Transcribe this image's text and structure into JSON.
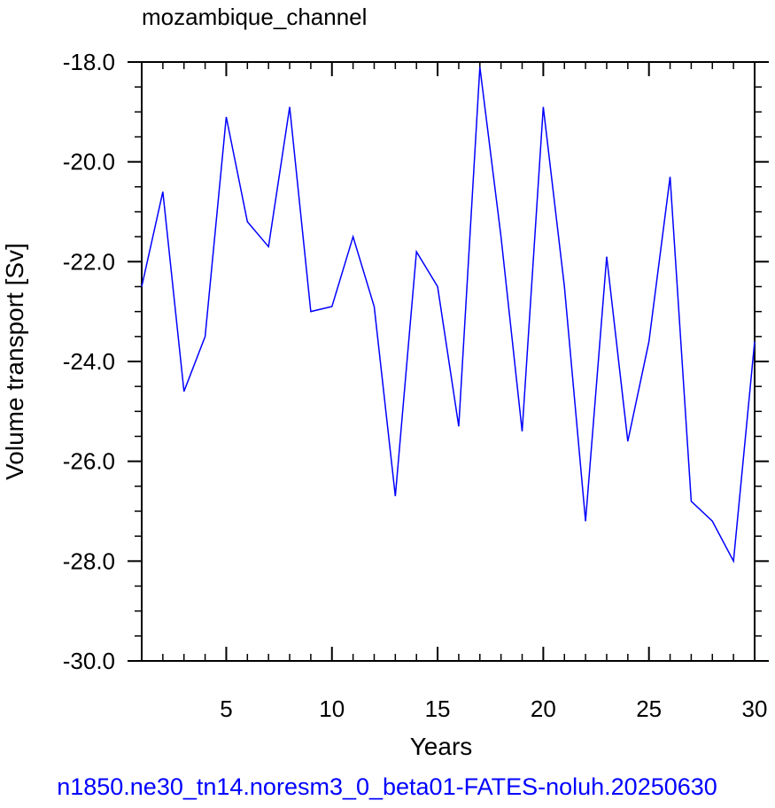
{
  "chart_data": {
    "type": "line",
    "title": "mozambique_channel",
    "xlabel": "Years",
    "ylabel": "Volume transport [Sv]",
    "footer": "n1850.ne30_tn14.noresm3_0_beta01-FATES-noluh.20250630",
    "xlim": [
      1,
      30
    ],
    "ylim": [
      -30,
      -18
    ],
    "xticks": [
      5,
      10,
      15,
      20,
      25,
      30
    ],
    "xtick_labels": [
      "5",
      "10",
      "15",
      "20",
      "25",
      "30"
    ],
    "yticks": [
      -18,
      -20,
      -22,
      -24,
      -26,
      -28,
      -30
    ],
    "ytick_labels": [
      "-18.0",
      "-20.0",
      "-22.0",
      "-24.0",
      "-26.0",
      "-28.0",
      "-30.0"
    ],
    "grid": false,
    "line_color": "#0000ff",
    "series": [
      {
        "x": [
          1,
          2,
          3,
          4,
          5,
          6,
          7,
          8,
          9,
          10,
          11,
          12,
          13,
          14,
          15,
          16,
          17,
          18,
          19,
          20,
          21,
          22,
          23,
          24,
          25,
          26,
          27,
          28,
          29,
          30
        ],
        "values": [
          -22.5,
          -20.6,
          -24.6,
          -23.5,
          -19.1,
          -21.2,
          -21.7,
          -18.9,
          -23.0,
          -22.9,
          -21.5,
          -22.9,
          -26.7,
          -21.8,
          -22.5,
          -25.3,
          -18.1,
          -21.5,
          -25.4,
          -18.9,
          -22.5,
          -27.2,
          -21.9,
          -25.6,
          -23.6,
          -20.3,
          -26.8,
          -27.2,
          -28.0,
          -23.6
        ]
      }
    ]
  }
}
